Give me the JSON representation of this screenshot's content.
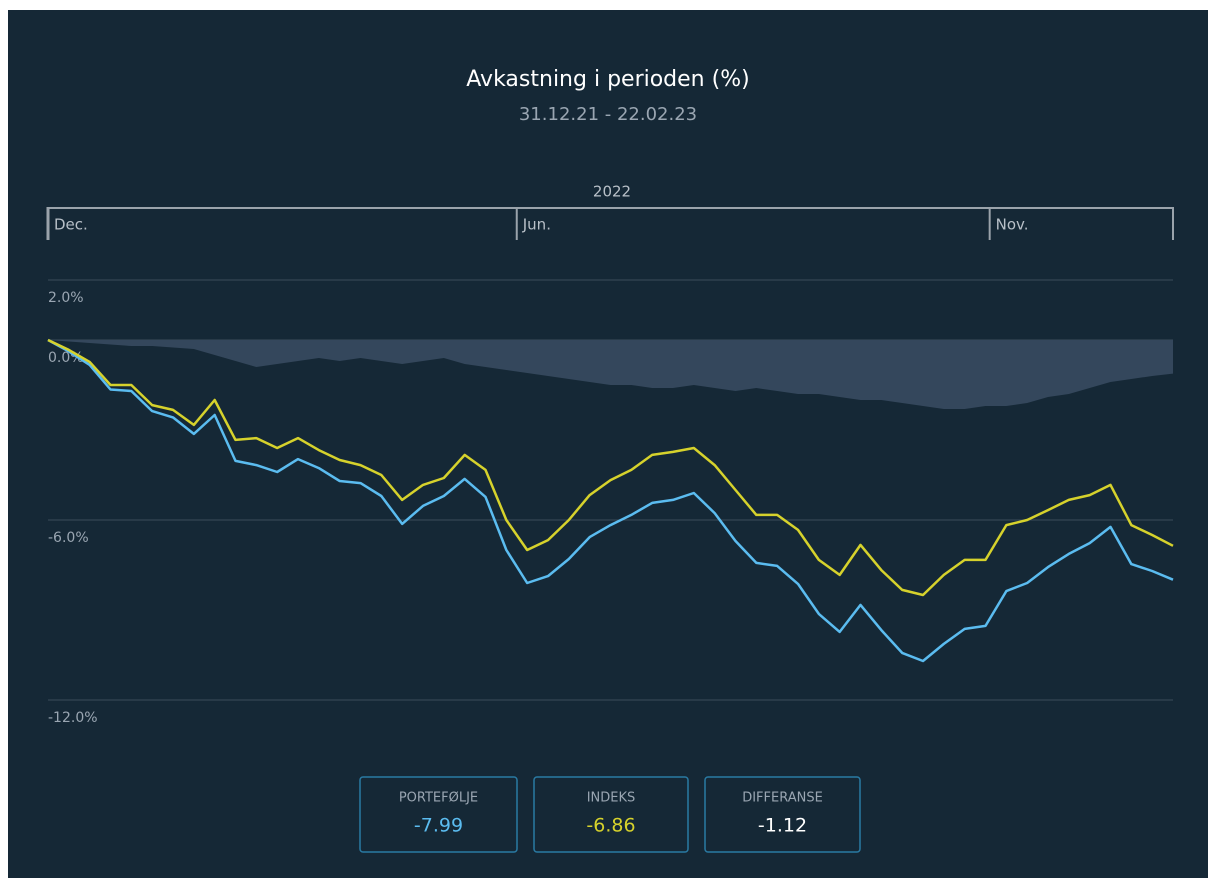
{
  "chart_data": {
    "type": "line",
    "title": "Avkastning i perioden (%)",
    "subtitle": "31.12.21 - 22.02.23",
    "x_axis_label": "2022",
    "xlim": [
      0,
      54
    ],
    "xticks": [
      {
        "value": 0,
        "label": "Dec."
      },
      {
        "value": 22.5,
        "label": "Jun."
      },
      {
        "value": 45.2,
        "label": "Nov."
      }
    ],
    "ylim": [
      -12,
      2
    ],
    "yticks": [
      {
        "value": 2,
        "label": "2.0%"
      },
      {
        "value": 0,
        "label": "0.0%"
      },
      {
        "value": -6,
        "label": "-6.0%"
      },
      {
        "value": -12,
        "label": "-12.0%"
      }
    ],
    "grid": true,
    "series": [
      {
        "name": "DIFFERANSE",
        "kind": "area",
        "color": "#34475c",
        "label_color": "#ffffff",
        "total": -1.12,
        "values": [
          0,
          -0.05,
          -0.1,
          -0.15,
          -0.2,
          -0.2,
          -0.25,
          -0.3,
          -0.5,
          -0.7,
          -0.9,
          -0.8,
          -0.7,
          -0.6,
          -0.7,
          -0.6,
          -0.7,
          -0.8,
          -0.7,
          -0.6,
          -0.8,
          -0.9,
          -1.0,
          -1.1,
          -1.2,
          -1.3,
          -1.4,
          -1.5,
          -1.5,
          -1.6,
          -1.6,
          -1.5,
          -1.6,
          -1.7,
          -1.6,
          -1.7,
          -1.8,
          -1.8,
          -1.9,
          -2.0,
          -2.0,
          -2.1,
          -2.2,
          -2.3,
          -2.3,
          -2.2,
          -2.2,
          -2.1,
          -1.9,
          -1.8,
          -1.6,
          -1.4,
          -1.3,
          -1.2,
          -1.12
        ]
      },
      {
        "name": "PORTEFØLJE",
        "kind": "line",
        "color": "#5bbcf0",
        "label_color": "#5bbcf0",
        "total": -7.99,
        "values": [
          0,
          -0.38,
          -0.83,
          -1.65,
          -1.7,
          -2.37,
          -2.58,
          -3.13,
          -2.5,
          -4.03,
          -4.17,
          -4.4,
          -3.97,
          -4.27,
          -4.7,
          -4.77,
          -5.2,
          -6.13,
          -5.53,
          -5.2,
          -4.63,
          -5.23,
          -7.0,
          -8.1,
          -7.87,
          -7.3,
          -6.57,
          -6.17,
          -5.83,
          -5.43,
          -5.33,
          -5.1,
          -5.77,
          -6.7,
          -7.43,
          -7.53,
          -8.13,
          -9.13,
          -9.73,
          -8.83,
          -9.67,
          -10.43,
          -10.7,
          -10.13,
          -9.63,
          -9.53,
          -8.37,
          -8.1,
          -7.57,
          -7.13,
          -6.77,
          -6.23,
          -7.47,
          -7.7,
          -7.99
        ]
      },
      {
        "name": "INDEKS",
        "kind": "line",
        "color": "#d6d22c",
        "label_color": "#d6d22c",
        "total": -6.86,
        "values": [
          0,
          -0.33,
          -0.73,
          -1.5,
          -1.5,
          -2.17,
          -2.33,
          -2.83,
          -2.0,
          -3.33,
          -3.27,
          -3.6,
          -3.27,
          -3.67,
          -4.0,
          -4.17,
          -4.5,
          -5.33,
          -4.83,
          -4.6,
          -3.83,
          -4.33,
          -6.0,
          -7.0,
          -6.67,
          -6.0,
          -5.17,
          -4.67,
          -4.33,
          -3.83,
          -3.73,
          -3.6,
          -4.17,
          -5.0,
          -5.83,
          -5.83,
          -6.33,
          -7.33,
          -7.83,
          -6.83,
          -7.67,
          -8.33,
          -8.5,
          -7.83,
          -7.33,
          -7.33,
          -6.17,
          -6.0,
          -5.67,
          -5.33,
          -5.17,
          -4.83,
          -6.17,
          -6.5,
          -6.86
        ]
      }
    ],
    "legend_order": [
      1,
      2,
      0
    ]
  }
}
